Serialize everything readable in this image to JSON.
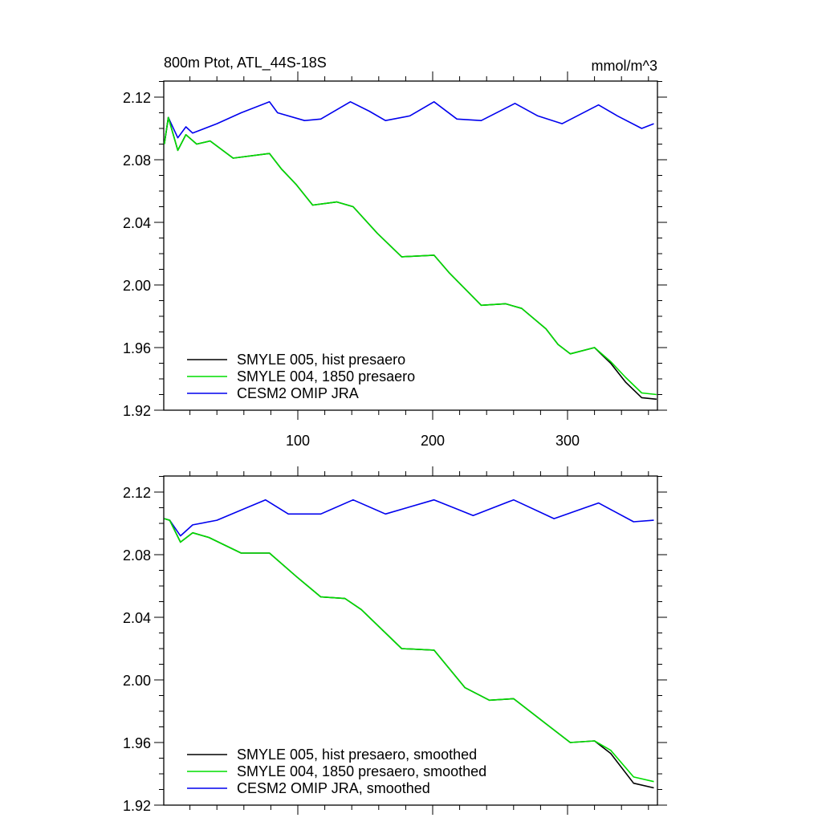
{
  "chart_data": [
    {
      "type": "line",
      "title": "800m Ptot, ATL_44S-18S",
      "units": "mmol/m^3",
      "xlim": [
        0,
        367
      ],
      "ylim": [
        1.92,
        2.13
      ],
      "xticks": [
        100,
        200,
        300
      ],
      "yticks": [
        "2.12",
        "2.08",
        "2.04",
        "2.00",
        "1.96",
        "1.92"
      ],
      "legend_position": "bottom-left",
      "series": [
        {
          "name": "SMYLE 005, hist presaero",
          "color": "#000000",
          "x": [
            1,
            4,
            11,
            17,
            25,
            35,
            52,
            79,
            88,
            99,
            111,
            129,
            141,
            159,
            177,
            201,
            212,
            236,
            254,
            266,
            284,
            293,
            302,
            320,
            332,
            343,
            355,
            366
          ],
          "y": [
            2.09,
            2.107,
            2.086,
            2.096,
            2.09,
            2.092,
            2.081,
            2.084,
            2.074,
            2.064,
            2.051,
            2.053,
            2.05,
            2.033,
            2.018,
            2.019,
            2.008,
            1.987,
            1.988,
            1.985,
            1.972,
            1.962,
            1.956,
            1.96,
            1.95,
            1.938,
            1.928,
            1.927
          ]
        },
        {
          "name": "SMYLE 004, 1850 presaero",
          "color": "#00dd00",
          "x": [
            1,
            4,
            11,
            17,
            25,
            35,
            52,
            79,
            88,
            99,
            111,
            129,
            141,
            159,
            177,
            201,
            212,
            236,
            254,
            266,
            284,
            293,
            302,
            320,
            332,
            343,
            355,
            366
          ],
          "y": [
            2.09,
            2.107,
            2.086,
            2.096,
            2.09,
            2.092,
            2.081,
            2.084,
            2.074,
            2.064,
            2.051,
            2.053,
            2.05,
            2.033,
            2.018,
            2.019,
            2.008,
            1.987,
            1.988,
            1.985,
            1.972,
            1.962,
            1.956,
            1.96,
            1.951,
            1.941,
            1.931,
            1.93
          ]
        },
        {
          "name": "CESM2 OMIP JRA",
          "color": "#0000ee",
          "x": [
            1,
            4,
            11,
            17,
            22,
            40,
            58,
            79,
            85,
            105,
            117,
            139,
            153,
            165,
            183,
            201,
            218,
            236,
            261,
            278,
            296,
            323,
            337,
            355,
            364
          ],
          "y": [
            2.09,
            2.107,
            2.094,
            2.101,
            2.097,
            2.103,
            2.11,
            2.117,
            2.11,
            2.105,
            2.106,
            2.117,
            2.111,
            2.105,
            2.108,
            2.117,
            2.106,
            2.105,
            2.116,
            2.108,
            2.103,
            2.115,
            2.108,
            2.1,
            2.103
          ]
        }
      ]
    },
    {
      "type": "line",
      "xlim": [
        0,
        367
      ],
      "ylim": [
        1.92,
        2.13
      ],
      "yticks": [
        "2.12",
        "2.08",
        "2.04",
        "2.00",
        "1.96",
        "1.92"
      ],
      "legend_position": "bottom-left",
      "series": [
        {
          "name": "SMYLE 005, hist presaero, smoothed",
          "color": "#000000",
          "x": [
            1,
            5,
            13,
            22,
            34,
            58,
            79,
            99,
            117,
            135,
            147,
            177,
            201,
            224,
            242,
            260,
            284,
            302,
            320,
            332,
            349,
            364
          ],
          "y": [
            2.103,
            2.102,
            2.088,
            2.094,
            2.091,
            2.081,
            2.081,
            2.066,
            2.053,
            2.052,
            2.045,
            2.02,
            2.019,
            1.995,
            1.987,
            1.988,
            1.972,
            1.96,
            1.961,
            1.953,
            1.934,
            1.931
          ]
        },
        {
          "name": "SMYLE 004, 1850 presaero, smoothed",
          "color": "#00dd00",
          "x": [
            1,
            5,
            13,
            22,
            34,
            58,
            79,
            99,
            117,
            135,
            147,
            177,
            201,
            224,
            242,
            260,
            284,
            302,
            320,
            332,
            349,
            364
          ],
          "y": [
            2.103,
            2.102,
            2.088,
            2.094,
            2.091,
            2.081,
            2.081,
            2.066,
            2.053,
            2.052,
            2.045,
            2.02,
            2.019,
            1.995,
            1.987,
            1.988,
            1.972,
            1.96,
            1.961,
            1.955,
            1.938,
            1.935
          ]
        },
        {
          "name": "CESM2 OMIP JRA, smoothed",
          "color": "#0000ee",
          "x": [
            1,
            5,
            13,
            22,
            40,
            76,
            93,
            117,
            141,
            165,
            201,
            230,
            260,
            290,
            323,
            349,
            364
          ],
          "y": [
            2.103,
            2.102,
            2.092,
            2.099,
            2.102,
            2.115,
            2.106,
            2.106,
            2.115,
            2.106,
            2.115,
            2.105,
            2.115,
            2.103,
            2.113,
            2.101,
            2.102
          ]
        }
      ]
    }
  ]
}
